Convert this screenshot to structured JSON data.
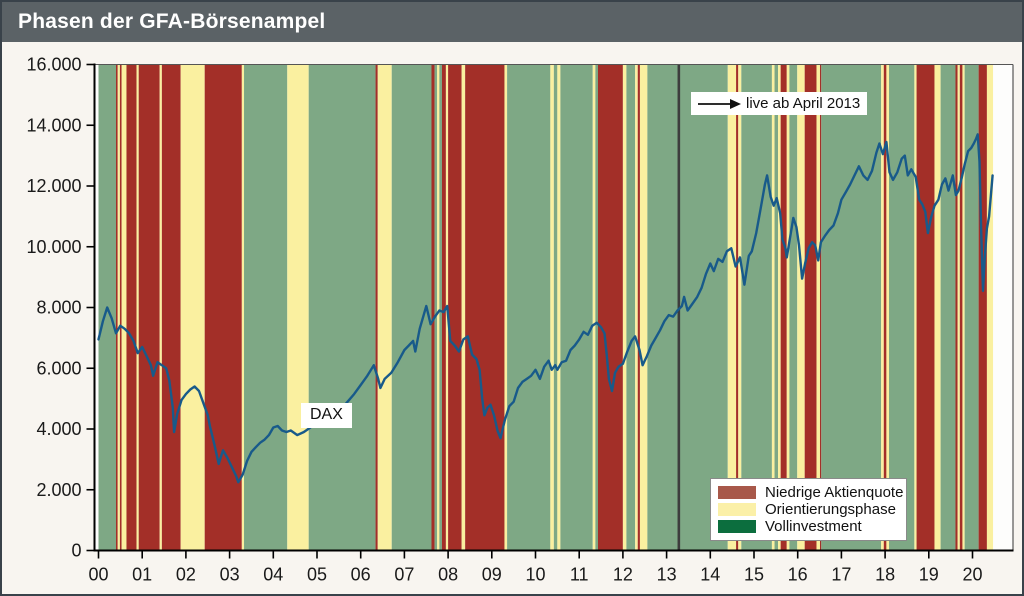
{
  "window": {
    "title": "Phasen der GFA-Börsenampel"
  },
  "chart_data": {
    "type": "line",
    "title": "Phasen der GFA-Börsenampel",
    "series_name": "DAX",
    "series_label": "DAX",
    "grid": false,
    "xlim": [
      2000,
      2020.95
    ],
    "ylim": [
      0,
      16000
    ],
    "x_ticks": [
      "00",
      "01",
      "02",
      "03",
      "04",
      "05",
      "06",
      "07",
      "08",
      "09",
      "10",
      "11",
      "12",
      "13",
      "14",
      "15",
      "16",
      "17",
      "18",
      "19",
      "20"
    ],
    "x_tick_years": [
      2000,
      2001,
      2002,
      2003,
      2004,
      2005,
      2006,
      2007,
      2008,
      2009,
      2010,
      2011,
      2012,
      2013,
      2014,
      2015,
      2016,
      2017,
      2018,
      2019,
      2020
    ],
    "y_tick_values": [
      0,
      2000,
      4000,
      6000,
      8000,
      10000,
      12000,
      14000,
      16000
    ],
    "y_tick_labels": [
      "0",
      "2.000",
      "4.000",
      "6.000",
      "8.000",
      "10.000",
      "12.000",
      "14.000",
      "16.000"
    ],
    "annotation": {
      "text": "live ab April 2013",
      "x": 2013.28
    },
    "line_color": "#185a8a",
    "live_line_color": "#3d3d3d",
    "band_colors": {
      "R": "#a32f28",
      "Y": "#faf0a0",
      "G": "#7ea885"
    },
    "legend": {
      "position": "bottom-right",
      "items": [
        {
          "label": "Niedrige Aktienquote",
          "color": "#a8584a",
          "key": "R"
        },
        {
          "label": "Orientierungsphase",
          "color": "#fbf0a8",
          "key": "Y"
        },
        {
          "label": "Vollinvestment",
          "color": "#0c6e3e",
          "key": "G"
        }
      ]
    },
    "bands": [
      [
        2000.0,
        2000.4,
        "G"
      ],
      [
        2000.4,
        2000.44,
        "R"
      ],
      [
        2000.44,
        2000.49,
        "Y"
      ],
      [
        2000.49,
        2000.53,
        "R"
      ],
      [
        2000.53,
        2000.64,
        "Y"
      ],
      [
        2000.64,
        2000.87,
        "R"
      ],
      [
        2000.87,
        2000.92,
        "Y"
      ],
      [
        2000.92,
        2001.4,
        "R"
      ],
      [
        2001.4,
        2001.45,
        "Y"
      ],
      [
        2001.45,
        2001.88,
        "R"
      ],
      [
        2001.88,
        2002.43,
        "Y"
      ],
      [
        2002.43,
        2003.28,
        "R"
      ],
      [
        2003.28,
        2003.33,
        "Y"
      ],
      [
        2003.33,
        2004.32,
        "G"
      ],
      [
        2004.32,
        2004.81,
        "Y"
      ],
      [
        2004.81,
        2006.34,
        "G"
      ],
      [
        2006.34,
        2006.39,
        "R"
      ],
      [
        2006.39,
        2006.71,
        "Y"
      ],
      [
        2006.71,
        2007.62,
        "G"
      ],
      [
        2007.62,
        2007.69,
        "R"
      ],
      [
        2007.69,
        2007.75,
        "G"
      ],
      [
        2007.75,
        2007.8,
        "Y"
      ],
      [
        2007.8,
        2007.86,
        "G"
      ],
      [
        2007.86,
        2007.95,
        "R"
      ],
      [
        2007.95,
        2008.0,
        "Y"
      ],
      [
        2008.0,
        2008.31,
        "R"
      ],
      [
        2008.31,
        2008.39,
        "Y"
      ],
      [
        2008.39,
        2009.29,
        "R"
      ],
      [
        2009.29,
        2009.35,
        "Y"
      ],
      [
        2009.35,
        2010.34,
        "G"
      ],
      [
        2010.34,
        2010.42,
        "Y"
      ],
      [
        2010.42,
        2010.5,
        "G"
      ],
      [
        2010.5,
        2010.57,
        "Y"
      ],
      [
        2010.57,
        2011.31,
        "G"
      ],
      [
        2011.31,
        2011.37,
        "Y"
      ],
      [
        2011.37,
        2011.43,
        "G"
      ],
      [
        2011.43,
        2012.0,
        "R"
      ],
      [
        2012.0,
        2012.08,
        "Y"
      ],
      [
        2012.08,
        2012.28,
        "G"
      ],
      [
        2012.28,
        2012.34,
        "Y"
      ],
      [
        2012.34,
        2012.39,
        "R"
      ],
      [
        2012.39,
        2012.56,
        "Y"
      ],
      [
        2012.56,
        2014.4,
        "G"
      ],
      [
        2014.4,
        2014.59,
        "Y"
      ],
      [
        2014.59,
        2014.64,
        "R"
      ],
      [
        2014.64,
        2014.71,
        "Y"
      ],
      [
        2014.71,
        2015.41,
        "G"
      ],
      [
        2015.41,
        2015.47,
        "Y"
      ],
      [
        2015.47,
        2015.55,
        "G"
      ],
      [
        2015.55,
        2015.61,
        "Y"
      ],
      [
        2015.61,
        2015.75,
        "R"
      ],
      [
        2015.75,
        2015.81,
        "Y"
      ],
      [
        2015.81,
        2015.99,
        "G"
      ],
      [
        2015.99,
        2016.16,
        "Y"
      ],
      [
        2016.16,
        2016.43,
        "R"
      ],
      [
        2016.43,
        2016.51,
        "Y"
      ],
      [
        2016.51,
        2016.54,
        "R"
      ],
      [
        2016.54,
        2017.91,
        "G"
      ],
      [
        2017.91,
        2017.97,
        "Y"
      ],
      [
        2017.97,
        2018.03,
        "R"
      ],
      [
        2018.03,
        2018.09,
        "Y"
      ],
      [
        2018.09,
        2018.67,
        "G"
      ],
      [
        2018.67,
        2018.72,
        "Y"
      ],
      [
        2018.72,
        2019.13,
        "R"
      ],
      [
        2019.13,
        2019.27,
        "Y"
      ],
      [
        2019.27,
        2019.61,
        "G"
      ],
      [
        2019.61,
        2019.66,
        "R"
      ],
      [
        2019.66,
        2019.71,
        "Y"
      ],
      [
        2019.71,
        2019.77,
        "R"
      ],
      [
        2019.77,
        2019.82,
        "Y"
      ],
      [
        2019.82,
        2020.14,
        "G"
      ],
      [
        2020.14,
        2020.33,
        "R"
      ],
      [
        2020.33,
        2020.47,
        "Y"
      ]
    ],
    "series": [
      [
        2000.0,
        6950
      ],
      [
        2000.1,
        7550
      ],
      [
        2000.2,
        8000
      ],
      [
        2000.3,
        7650
      ],
      [
        2000.4,
        7150
      ],
      [
        2000.5,
        7400
      ],
      [
        2000.6,
        7300
      ],
      [
        2000.7,
        7150
      ],
      [
        2000.8,
        6900
      ],
      [
        2000.9,
        6500
      ],
      [
        2001.0,
        6700
      ],
      [
        2001.1,
        6400
      ],
      [
        2001.2,
        6100
      ],
      [
        2001.25,
        5750
      ],
      [
        2001.35,
        6200
      ],
      [
        2001.45,
        6100
      ],
      [
        2001.55,
        6000
      ],
      [
        2001.62,
        5600
      ],
      [
        2001.7,
        4700
      ],
      [
        2001.73,
        3900
      ],
      [
        2001.8,
        4500
      ],
      [
        2001.9,
        4950
      ],
      [
        2002.0,
        5150
      ],
      [
        2002.1,
        5300
      ],
      [
        2002.2,
        5400
      ],
      [
        2002.3,
        5250
      ],
      [
        2002.4,
        4850
      ],
      [
        2002.5,
        4450
      ],
      [
        2002.55,
        4100
      ],
      [
        2002.65,
        3500
      ],
      [
        2002.75,
        2850
      ],
      [
        2002.85,
        3300
      ],
      [
        2002.95,
        3050
      ],
      [
        2003.05,
        2750
      ],
      [
        2003.15,
        2450
      ],
      [
        2003.2,
        2250
      ],
      [
        2003.3,
        2500
      ],
      [
        2003.4,
        2950
      ],
      [
        2003.5,
        3250
      ],
      [
        2003.6,
        3400
      ],
      [
        2003.7,
        3550
      ],
      [
        2003.8,
        3650
      ],
      [
        2003.9,
        3800
      ],
      [
        2004.0,
        4050
      ],
      [
        2004.1,
        4100
      ],
      [
        2004.2,
        3950
      ],
      [
        2004.3,
        3900
      ],
      [
        2004.4,
        3950
      ],
      [
        2004.55,
        3800
      ],
      [
        2004.7,
        3900
      ],
      [
        2004.85,
        4050
      ],
      [
        2005.0,
        4250
      ],
      [
        2005.15,
        4350
      ],
      [
        2005.3,
        4300
      ],
      [
        2005.4,
        4450
      ],
      [
        2005.55,
        4650
      ],
      [
        2005.7,
        4900
      ],
      [
        2005.85,
        5150
      ],
      [
        2006.0,
        5450
      ],
      [
        2006.15,
        5750
      ],
      [
        2006.3,
        6100
      ],
      [
        2006.4,
        5650
      ],
      [
        2006.45,
        5350
      ],
      [
        2006.55,
        5650
      ],
      [
        2006.7,
        5850
      ],
      [
        2006.85,
        6200
      ],
      [
        2007.0,
        6600
      ],
      [
        2007.1,
        6750
      ],
      [
        2007.2,
        6900
      ],
      [
        2007.25,
        6550
      ],
      [
        2007.35,
        7300
      ],
      [
        2007.5,
        8050
      ],
      [
        2007.6,
        7450
      ],
      [
        2007.7,
        7700
      ],
      [
        2007.8,
        7900
      ],
      [
        2007.9,
        7850
      ],
      [
        2007.98,
        8050
      ],
      [
        2008.05,
        6900
      ],
      [
        2008.15,
        6750
      ],
      [
        2008.25,
        6550
      ],
      [
        2008.35,
        6950
      ],
      [
        2008.45,
        7050
      ],
      [
        2008.55,
        6450
      ],
      [
        2008.65,
        6300
      ],
      [
        2008.72,
        5950
      ],
      [
        2008.78,
        5000
      ],
      [
        2008.83,
        4450
      ],
      [
        2008.9,
        4700
      ],
      [
        2008.97,
        4800
      ],
      [
        2009.05,
        4450
      ],
      [
        2009.13,
        3950
      ],
      [
        2009.2,
        3700
      ],
      [
        2009.3,
        4300
      ],
      [
        2009.4,
        4750
      ],
      [
        2009.5,
        4900
      ],
      [
        2009.6,
        5350
      ],
      [
        2009.7,
        5550
      ],
      [
        2009.8,
        5650
      ],
      [
        2009.9,
        5750
      ],
      [
        2010.0,
        5950
      ],
      [
        2010.1,
        5650
      ],
      [
        2010.2,
        6050
      ],
      [
        2010.3,
        6250
      ],
      [
        2010.37,
        5950
      ],
      [
        2010.45,
        6100
      ],
      [
        2010.5,
        5950
      ],
      [
        2010.6,
        6200
      ],
      [
        2010.7,
        6250
      ],
      [
        2010.8,
        6600
      ],
      [
        2010.9,
        6750
      ],
      [
        2011.0,
        6950
      ],
      [
        2011.1,
        7200
      ],
      [
        2011.2,
        7100
      ],
      [
        2011.3,
        7400
      ],
      [
        2011.4,
        7500
      ],
      [
        2011.5,
        7350
      ],
      [
        2011.58,
        7150
      ],
      [
        2011.63,
        6450
      ],
      [
        2011.68,
        5650
      ],
      [
        2011.75,
        5250
      ],
      [
        2011.82,
        5850
      ],
      [
        2011.9,
        6050
      ],
      [
        2012.0,
        6150
      ],
      [
        2012.1,
        6550
      ],
      [
        2012.2,
        6900
      ],
      [
        2012.28,
        7050
      ],
      [
        2012.38,
        6600
      ],
      [
        2012.45,
        6100
      ],
      [
        2012.55,
        6400
      ],
      [
        2012.65,
        6750
      ],
      [
        2012.75,
        7000
      ],
      [
        2012.85,
        7250
      ],
      [
        2012.95,
        7550
      ],
      [
        2013.05,
        7750
      ],
      [
        2013.15,
        7700
      ],
      [
        2013.25,
        7900
      ],
      [
        2013.35,
        8050
      ],
      [
        2013.4,
        8350
      ],
      [
        2013.48,
        7900
      ],
      [
        2013.58,
        8100
      ],
      [
        2013.7,
        8350
      ],
      [
        2013.8,
        8650
      ],
      [
        2013.9,
        9100
      ],
      [
        2014.0,
        9450
      ],
      [
        2014.08,
        9200
      ],
      [
        2014.18,
        9600
      ],
      [
        2014.28,
        9500
      ],
      [
        2014.38,
        9850
      ],
      [
        2014.48,
        9950
      ],
      [
        2014.58,
        9350
      ],
      [
        2014.68,
        9650
      ],
      [
        2014.78,
        8750
      ],
      [
        2014.88,
        9700
      ],
      [
        2014.95,
        9850
      ],
      [
        2015.05,
        10450
      ],
      [
        2015.15,
        11250
      ],
      [
        2015.25,
        12050
      ],
      [
        2015.3,
        12350
      ],
      [
        2015.38,
        11650
      ],
      [
        2015.45,
        11350
      ],
      [
        2015.52,
        11600
      ],
      [
        2015.6,
        11100
      ],
      [
        2015.65,
        10250
      ],
      [
        2015.72,
        9950
      ],
      [
        2015.75,
        9650
      ],
      [
        2015.82,
        10250
      ],
      [
        2015.9,
        10950
      ],
      [
        2015.97,
        10650
      ],
      [
        2016.03,
        10050
      ],
      [
        2016.1,
        8950
      ],
      [
        2016.17,
        9450
      ],
      [
        2016.25,
        9950
      ],
      [
        2016.33,
        10150
      ],
      [
        2016.4,
        10050
      ],
      [
        2016.47,
        9550
      ],
      [
        2016.53,
        10150
      ],
      [
        2016.62,
        10350
      ],
      [
        2016.72,
        10550
      ],
      [
        2016.82,
        10700
      ],
      [
        2016.92,
        11100
      ],
      [
        2017.0,
        11550
      ],
      [
        2017.1,
        11800
      ],
      [
        2017.2,
        12050
      ],
      [
        2017.3,
        12350
      ],
      [
        2017.4,
        12650
      ],
      [
        2017.5,
        12350
      ],
      [
        2017.6,
        12200
      ],
      [
        2017.7,
        12500
      ],
      [
        2017.8,
        13100
      ],
      [
        2017.87,
        13400
      ],
      [
        2017.95,
        13050
      ],
      [
        2018.03,
        13450
      ],
      [
        2018.1,
        12450
      ],
      [
        2018.18,
        12200
      ],
      [
        2018.28,
        12450
      ],
      [
        2018.38,
        12900
      ],
      [
        2018.45,
        13000
      ],
      [
        2018.52,
        12350
      ],
      [
        2018.6,
        12550
      ],
      [
        2018.7,
        12300
      ],
      [
        2018.78,
        11550
      ],
      [
        2018.85,
        11400
      ],
      [
        2018.92,
        11150
      ],
      [
        2018.98,
        10450
      ],
      [
        2019.05,
        10950
      ],
      [
        2019.13,
        11350
      ],
      [
        2019.22,
        11550
      ],
      [
        2019.3,
        12050
      ],
      [
        2019.38,
        12250
      ],
      [
        2019.45,
        11850
      ],
      [
        2019.55,
        12350
      ],
      [
        2019.62,
        11700
      ],
      [
        2019.68,
        11850
      ],
      [
        2019.75,
        12250
      ],
      [
        2019.82,
        12700
      ],
      [
        2019.9,
        13150
      ],
      [
        2019.97,
        13250
      ],
      [
        2020.03,
        13400
      ],
      [
        2020.08,
        13550
      ],
      [
        2020.12,
        13700
      ],
      [
        2020.16,
        12800
      ],
      [
        2020.2,
        10500
      ],
      [
        2020.24,
        8550
      ],
      [
        2020.28,
        9600
      ],
      [
        2020.33,
        10600
      ],
      [
        2020.38,
        11000
      ],
      [
        2020.42,
        11700
      ],
      [
        2020.46,
        12350
      ]
    ]
  }
}
